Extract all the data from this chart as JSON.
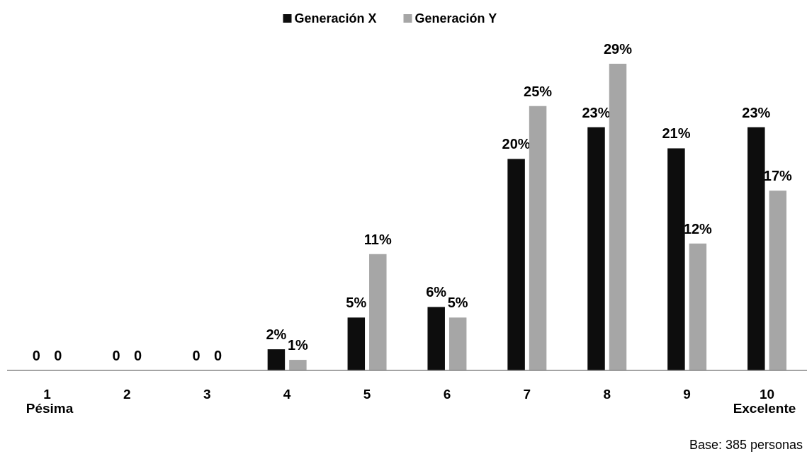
{
  "chart_data": {
    "type": "bar",
    "categories": [
      "1\nPésima",
      "2",
      "3",
      "4",
      "5",
      "6",
      "7",
      "8",
      "9",
      "10\nExcelente"
    ],
    "series": [
      {
        "name": "Generación X",
        "color": "#0d0d0d",
        "values": [
          0,
          0,
          0,
          2,
          5,
          6,
          20,
          23,
          21,
          23
        ],
        "value_labels": [
          "0",
          "0",
          "0",
          "2%",
          "5%",
          "6%",
          "20%",
          "23%",
          "21%",
          "23%"
        ]
      },
      {
        "name": "Generación Y",
        "color": "#a6a6a6",
        "values": [
          0,
          0,
          0,
          1,
          11,
          5,
          25,
          29,
          12,
          17
        ],
        "value_labels": [
          "0",
          "0",
          "0",
          "1%",
          "11%",
          "5%",
          "25%",
          "29%",
          "12%",
          "17%"
        ]
      }
    ],
    "legend": "top",
    "annotations": [
      "Base: 385 personas"
    ]
  }
}
